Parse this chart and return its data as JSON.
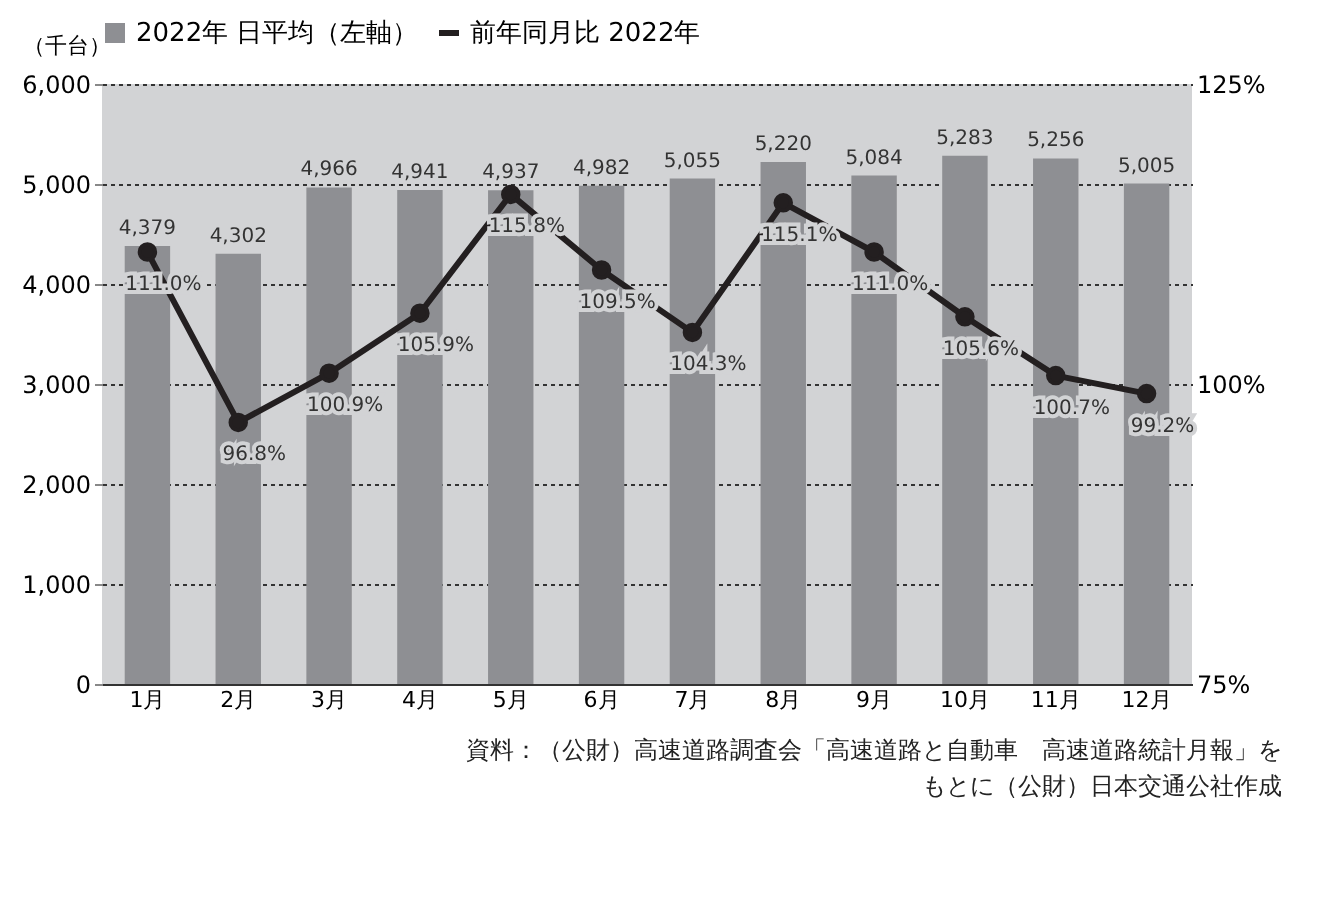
{
  "chart_data": {
    "type": "bar",
    "ylabel": "（千台）",
    "categories": [
      "1月",
      "2月",
      "3月",
      "4月",
      "5月",
      "6月",
      "7月",
      "8月",
      "9月",
      "10月",
      "11月",
      "12月"
    ],
    "series": [
      {
        "name": "2022年 日平均（左軸）",
        "color": "#8e8f93",
        "values": [
          4379,
          4302,
          4966,
          4941,
          4937,
          4982,
          5055,
          5220,
          5084,
          5283,
          5256,
          5005
        ],
        "value_labels": [
          "4,379",
          "4,302",
          "4,966",
          "4,941",
          "4,937",
          "4,982",
          "5,055",
          "5,220",
          "5,084",
          "5,283",
          "5,256",
          "5,005"
        ]
      },
      {
        "name": "前年同月比 2022年",
        "type": "line",
        "axis": "y2",
        "color": "#231f20",
        "values": [
          111.0,
          96.8,
          100.9,
          105.9,
          115.8,
          109.5,
          104.3,
          115.1,
          111.0,
          105.6,
          100.7,
          99.2
        ],
        "value_labels": [
          "111.0%",
          "96.8%",
          "100.9%",
          "105.9%",
          "115.8%",
          "109.5%",
          "104.3%",
          "115.1%",
          "111.0%",
          "105.6%",
          "100.7%",
          "99.2%"
        ]
      }
    ],
    "ylim": [
      0,
      6000
    ],
    "yticks": [
      0,
      {
        "value": 1000,
        "label": "1,000"
      },
      {
        "value": 2000,
        "label": "2,000"
      },
      {
        "value": 3000,
        "label": "3,000"
      },
      {
        "value": 4000,
        "label": "4,000"
      },
      {
        "value": 5000,
        "label": "5,000"
      },
      {
        "value": 6000,
        "label": "6,000"
      }
    ],
    "y2lim": [
      75,
      125
    ],
    "y2ticks": [
      {
        "value": 75,
        "label": "75%"
      },
      {
        "value": 100,
        "label": "100%"
      },
      {
        "value": 125,
        "label": "125%"
      }
    ],
    "grid": "y",
    "legend": "top",
    "marker": "circle",
    "line_style": "solid",
    "annotations": [
      "資料：（公財）高速道路調査会「高速道路と自動車　高速道路統計月報」を",
      "もとに（公財）日本交通公社作成"
    ]
  }
}
